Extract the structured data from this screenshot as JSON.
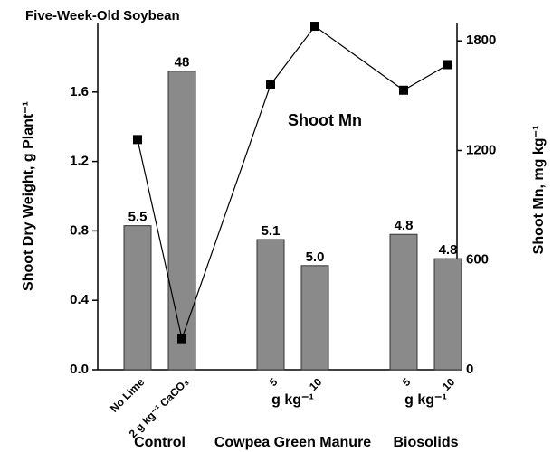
{
  "chart_data": {
    "type": "bar_line",
    "title": "Five-Week-Old Soybean",
    "annotation": "Shoot Mn",
    "ylabel": "Shoot Dry Weight, g Plant⁻¹",
    "y2label": "Shoot Mn, mg kg⁻¹",
    "groups": [
      {
        "name": "Control",
        "categories": [
          "No Lime",
          "2 g kg⁻¹ CaCO₃"
        ]
      },
      {
        "name": "Cowpea Green Manure",
        "unit": "g kg⁻¹",
        "categories": [
          "5",
          "10"
        ]
      },
      {
        "name": "Biosolids",
        "unit": "g kg⁻¹",
        "categories": [
          "5",
          "10"
        ]
      }
    ],
    "series": [
      {
        "name": "Shoot Dry Weight",
        "color": "#8a8a8a",
        "values": [
          0.83,
          1.72,
          0.75,
          0.6,
          0.78,
          0.64
        ],
        "bar_labels": [
          "5.5",
          "48",
          "5.1",
          "5.0",
          "4.8",
          "4.8"
        ]
      },
      {
        "name": "Shoot Mn",
        "color": "#000000",
        "axis": "y2",
        "values": [
          1260,
          170,
          1560,
          1880,
          1530,
          1670
        ]
      }
    ],
    "ylim": [
      0,
      2.0
    ],
    "yticks": [
      {
        "value": 0,
        "label": "0.0"
      },
      0.4,
      0.8,
      1.2,
      1.6
    ],
    "y2lim": [
      0,
      1900
    ],
    "y2ticks": [
      0,
      600,
      1200,
      1800
    ]
  }
}
